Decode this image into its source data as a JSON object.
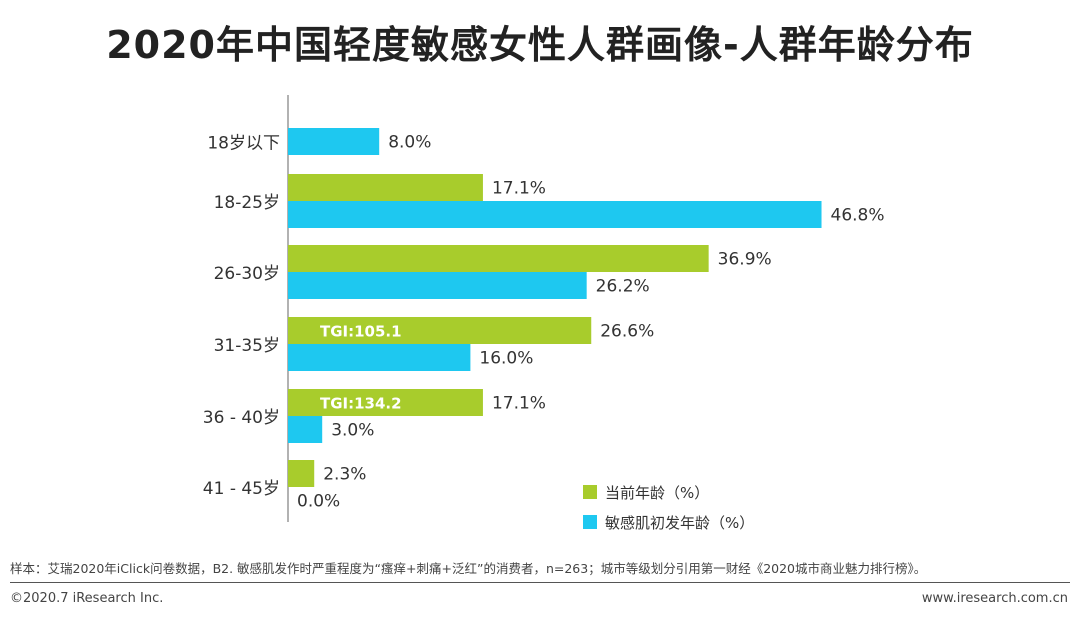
{
  "page": {
    "title": "2020年中国轻度敏感女性人群画像-人群年龄分布",
    "note": "样本：艾瑞2020年iClick问卷数据，B2. 敏感肌发作时严重程度为“瘙痒+刺痛+泛红”的消费者，n=263；城市等级划分引用第一财经《2020城市商业魅力排行榜》。",
    "footer_left": "©2020.7 iResearch Inc.",
    "footer_right": "www.iresearch.com.cn"
  },
  "chart_data": {
    "type": "bar",
    "orientation": "horizontal",
    "title": "2020年中国轻度敏感女性人群画像-人群年龄分布",
    "categories": [
      "18岁以下",
      "18-25岁",
      "26-30岁",
      "31-35岁",
      "36 - 40岁",
      "41 - 45岁"
    ],
    "series": [
      {
        "name": "当前年龄（%）",
        "color": "#a8cc2c",
        "values": [
          null,
          17.1,
          36.9,
          26.6,
          17.1,
          2.3
        ],
        "labels": [
          "",
          "17.1%",
          "36.9%",
          "26.6%",
          "17.1%",
          "2.3%"
        ]
      },
      {
        "name": "敏感肌初发年龄（%）",
        "color": "#1ec8f0",
        "values": [
          8.0,
          46.8,
          26.2,
          16.0,
          3.0,
          0.0
        ],
        "labels": [
          "8.0%",
          "46.8%",
          "26.2%",
          "16.0%",
          "3.0%",
          "0.0%"
        ]
      }
    ],
    "annotations": [
      {
        "category": "31-35岁",
        "series": "当前年龄（%）",
        "text": "TGI:105.1"
      },
      {
        "category": "36 - 40岁",
        "series": "当前年龄（%）",
        "text": "TGI:134.2"
      }
    ],
    "xlim": [
      0,
      50
    ],
    "legend_position": "bottom-right",
    "grid": false
  }
}
